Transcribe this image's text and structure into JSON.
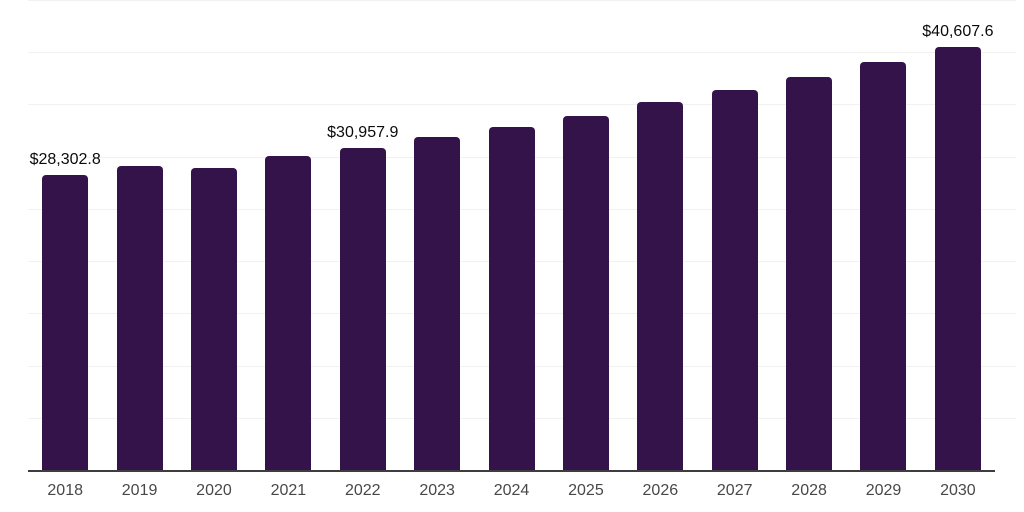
{
  "chart_data": {
    "type": "bar",
    "title": "",
    "xlabel": "",
    "ylabel": "",
    "categories": [
      "2018",
      "2019",
      "2020",
      "2021",
      "2022",
      "2023",
      "2024",
      "2025",
      "2026",
      "2027",
      "2028",
      "2029",
      "2030"
    ],
    "values": [
      28302.8,
      29200,
      29050,
      30150,
      30957.9,
      32000,
      32950,
      34000,
      35300,
      36500,
      37700,
      39150,
      40607.6
    ],
    "value_labels": [
      "$28,302.8",
      "",
      "",
      "",
      "$30,957.9",
      "",
      "",
      "",
      "",
      "",
      "",
      "",
      "$40,607.6"
    ],
    "ylim": [
      0,
      45000
    ],
    "gridline_step": 5000,
    "grid": "horizontal-light",
    "legend": "none",
    "y_axis_tick_labels_visible": false,
    "colors": {
      "bar": "#331349",
      "gridline": "#f1f1f2",
      "axis_line": "#3d3d3d",
      "value_label_text": "#0a0a0a",
      "tick_label_text": "#484848",
      "background": "#ffffff"
    }
  }
}
